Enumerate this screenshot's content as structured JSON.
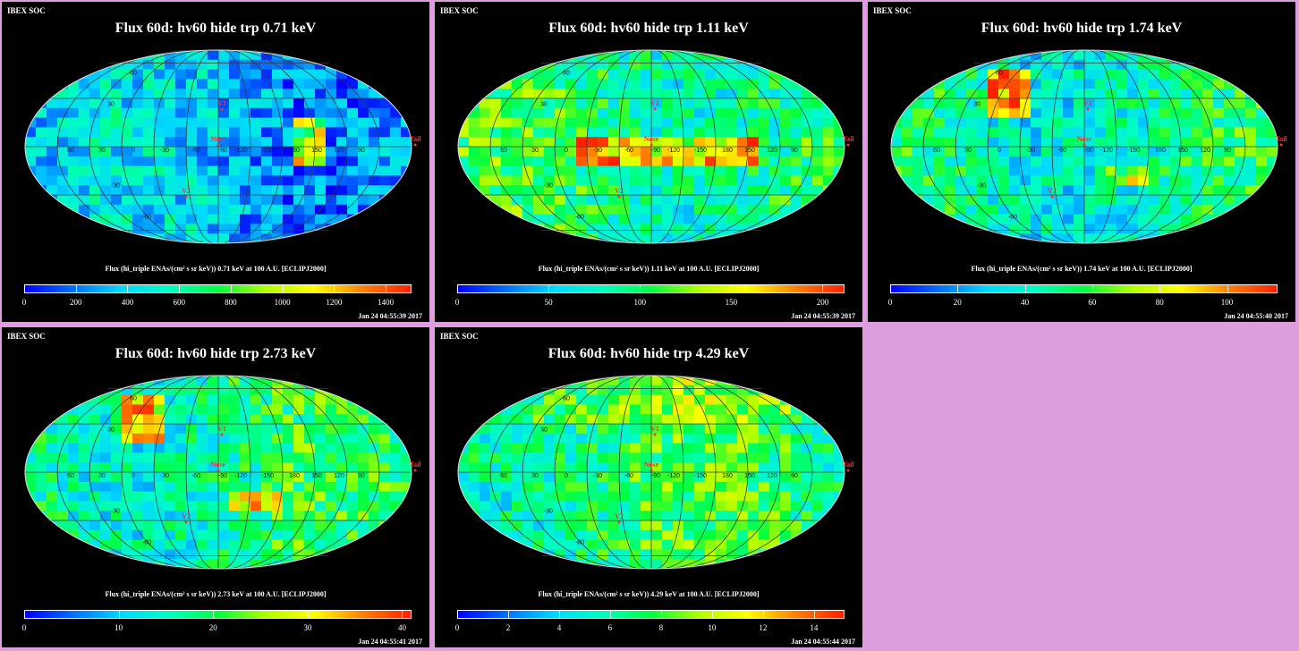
{
  "colors": {
    "background": "#dc9edc",
    "panel": "#000000",
    "text": "#ffffff",
    "marker": "#ff3030",
    "colormap": [
      "#0000ff",
      "#0070ff",
      "#00d8ff",
      "#00ffc0",
      "#00ff40",
      "#b0ff00",
      "#ffff00",
      "#ff8000",
      "#ff2000"
    ]
  },
  "common": {
    "header": "IBEX SOC",
    "markers": {
      "v1": "V1",
      "v2": "V2",
      "nose": "Nose",
      "tail": "Tail"
    },
    "lon_labels": [
      "60",
      "30",
      "0",
      "-30",
      "-60",
      "-90",
      "-120",
      "-150",
      "180",
      "150",
      "120",
      "90"
    ],
    "lat_labels": [
      "60",
      "30",
      "-30",
      "-60"
    ]
  },
  "panels": [
    {
      "title": "Flux 60d: hv60 hide trp 0.71 keV",
      "caption": "Flux (hi_triple ENAs/(cm² s sr keV)) 0.71 keV at 100 A.U. [ECLIPJ2000]",
      "timestamp": "Jan 24 04:55:39 2017"
    },
    {
      "title": "Flux 60d: hv60 hide trp 1.11 keV",
      "caption": "Flux (hi_triple ENAs/(cm² s sr keV)) 1.11 keV at 100 A.U. [ECLIPJ2000]",
      "timestamp": "Jan 24 04:55:39 2017"
    },
    {
      "title": "Flux 60d: hv60 hide trp 1.74 keV",
      "caption": "Flux (hi_triple ENAs/(cm² s sr keV)) 1.74 keV at 100 A.U. [ECLIPJ2000]",
      "timestamp": "Jan 24 04:55:40 2017"
    },
    {
      "title": "Flux 60d: hv60 hide trp 2.73 keV",
      "caption": "Flux (hi_triple ENAs/(cm² s sr keV)) 2.73 keV at 100 A.U. [ECLIPJ2000]",
      "timestamp": "Jan 24 04:55:41 2017"
    },
    {
      "title": "Flux 60d: hv60 hide trp 4.29 keV",
      "caption": "Flux (hi_triple ENAs/(cm² s sr keV)) 4.29 keV at 100 A.U. [ECLIPJ2000]",
      "timestamp": "Jan 24 04:55:44 2017"
    }
  ],
  "chart_data": [
    {
      "type": "heatmap",
      "title": "Flux 60d: hv60 hide trp 0.71 keV",
      "projection": "Mollweide",
      "colorbar_ticks": [
        0,
        200,
        400,
        600,
        800,
        1000,
        1200,
        1400
      ],
      "colorbar_range": [
        0,
        1500
      ],
      "map_level": 0.22
    },
    {
      "type": "heatmap",
      "title": "Flux 60d: hv60 hide trp 1.11 keV",
      "projection": "Mollweide",
      "colorbar_ticks": [
        0,
        50,
        100,
        150,
        200
      ],
      "colorbar_range": [
        0,
        212
      ],
      "map_level": 0.45
    },
    {
      "type": "heatmap",
      "title": "Flux 60d: hv60 hide trp 1.74 keV",
      "projection": "Mollweide",
      "colorbar_ticks": [
        0,
        20,
        40,
        60,
        80,
        100
      ],
      "colorbar_range": [
        0,
        115
      ],
      "map_level": 0.4
    },
    {
      "type": "heatmap",
      "title": "Flux 60d: hv60 hide trp 2.73 keV",
      "projection": "Mollweide",
      "colorbar_ticks": [
        0,
        10,
        20,
        30,
        40
      ],
      "colorbar_range": [
        0,
        41
      ],
      "map_level": 0.42
    },
    {
      "type": "heatmap",
      "title": "Flux 60d: hv60 hide trp 4.29 keV",
      "projection": "Mollweide",
      "colorbar_ticks": [
        0,
        2,
        4,
        6,
        8,
        10,
        12,
        14
      ],
      "colorbar_range": [
        0,
        15.2
      ],
      "map_level": 0.45
    }
  ]
}
